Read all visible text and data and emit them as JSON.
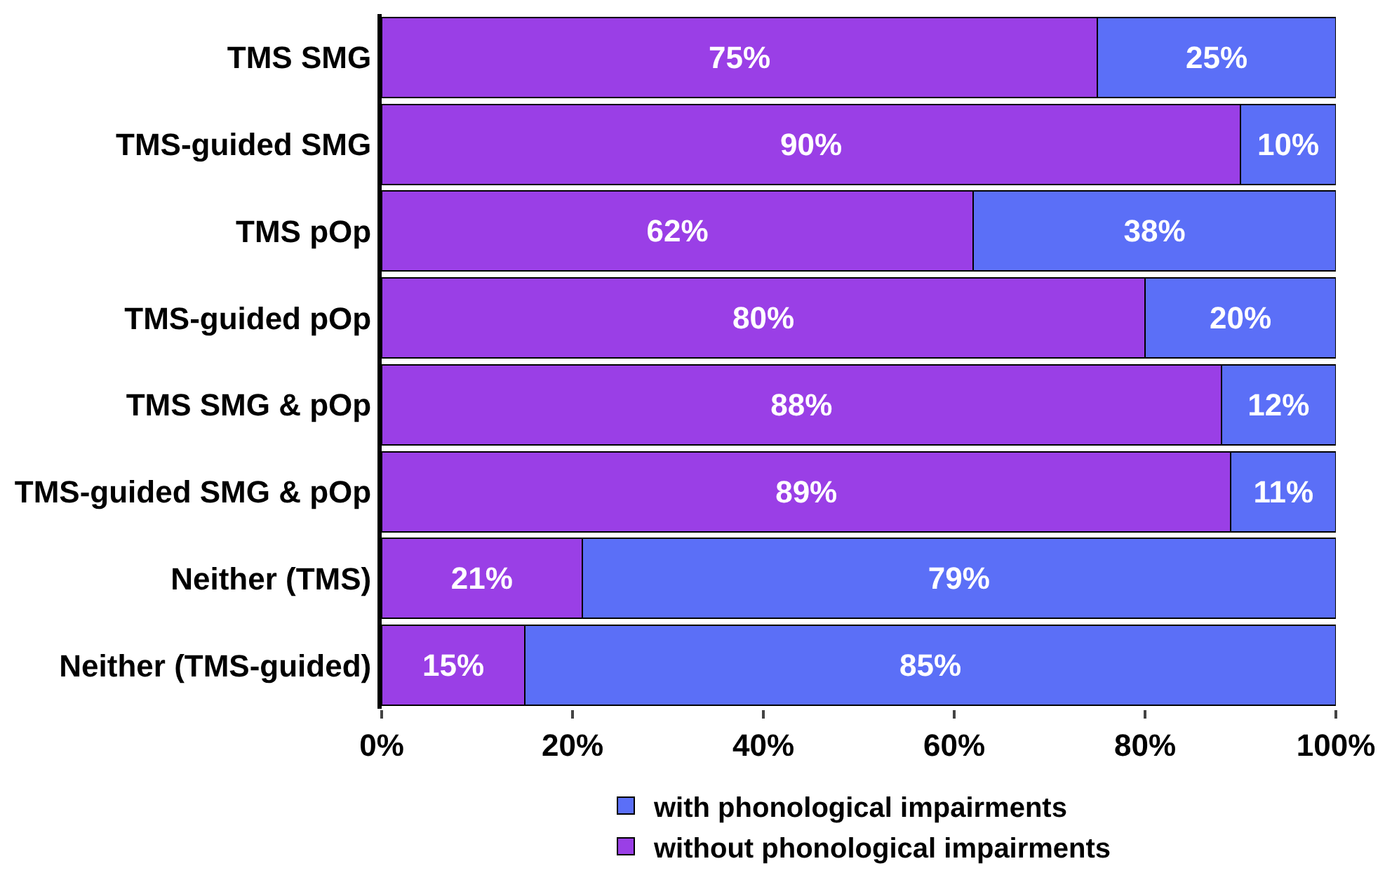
{
  "chart_data": {
    "type": "bar",
    "orientation": "horizontal",
    "stacked": true,
    "categories": [
      "TMS SMG",
      "TMS-guided SMG",
      "TMS pOp",
      "TMS-guided pOp",
      "TMS SMG & pOp",
      "TMS-guided SMG & pOp",
      "Neither (TMS)",
      "Neither (TMS-guided)"
    ],
    "series": [
      {
        "name": "without phonological impairments",
        "color": "#9a3fe6",
        "values": [
          75,
          90,
          62,
          80,
          88,
          89,
          21,
          15
        ],
        "value_labels": [
          "75%",
          "90%",
          "62%",
          "80%",
          "88%",
          "89%",
          "21%",
          "15%"
        ]
      },
      {
        "name": "with phonological impairments",
        "color": "#5b6ff7",
        "values": [
          25,
          10,
          38,
          20,
          12,
          11,
          79,
          85
        ],
        "value_labels": [
          "25%",
          "10%",
          "38%",
          "20%",
          "12%",
          "11%",
          "79%",
          "85%"
        ]
      }
    ],
    "xlim": [
      0,
      100
    ],
    "xticks": [
      {
        "value": 0,
        "label": "0%"
      },
      {
        "value": 20,
        "label": "20%"
      },
      {
        "value": 40,
        "label": "40%"
      },
      {
        "value": 60,
        "label": "60%"
      },
      {
        "value": 80,
        "label": "80%"
      },
      {
        "value": 100,
        "label": "100%"
      }
    ],
    "grid": false,
    "legend": "bottom"
  }
}
